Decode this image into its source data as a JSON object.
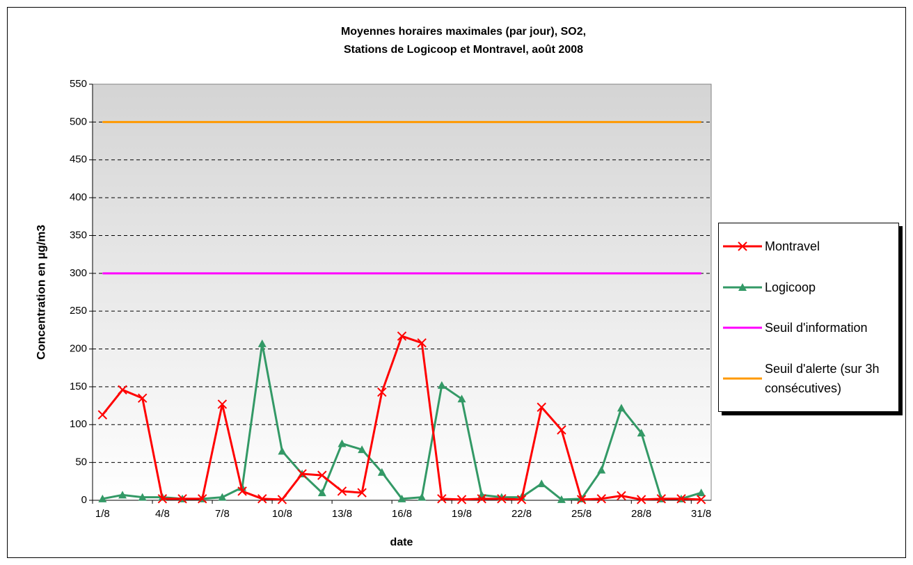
{
  "chart_data": {
    "type": "line",
    "title": [
      "Moyennes horaires maximales (par jour), SO2,",
      "Stations de Logicoop et Montravel, août 2008"
    ],
    "x_label": "date",
    "y_label": "Concentration en µg/m3",
    "categories": [
      "1/8",
      null,
      null,
      "4/8",
      null,
      null,
      "7/8",
      null,
      null,
      "10/8",
      null,
      null,
      "13/8",
      null,
      null,
      "16/8",
      null,
      null,
      "19/8",
      null,
      null,
      "22/8",
      null,
      null,
      "25/8",
      null,
      null,
      "28/8",
      null,
      null,
      "31/8"
    ],
    "series": [
      {
        "name": "Montravel",
        "color": "#ff0000",
        "marker": "x",
        "values": [
          113,
          146,
          135,
          2,
          2,
          2,
          127,
          12,
          2,
          1,
          35,
          33,
          12,
          10,
          143,
          217,
          208,
          2,
          1,
          2,
          2,
          1,
          123,
          93,
          1,
          2,
          6,
          1,
          2,
          2,
          1
        ]
      },
      {
        "name": "Logicoop",
        "color": "#339966",
        "marker": "triangle",
        "values": [
          2,
          7,
          4,
          4,
          2,
          2,
          4,
          17,
          207,
          65,
          35,
          10,
          75,
          67,
          37,
          2,
          4,
          152,
          134,
          7,
          4,
          4,
          22,
          1,
          2,
          40,
          122,
          89,
          2,
          2,
          10
        ]
      },
      {
        "name": "Seuil d'information",
        "color": "#ff00ff",
        "marker": "none",
        "values": [
          300,
          300,
          300,
          300,
          300,
          300,
          300,
          300,
          300,
          300,
          300,
          300,
          300,
          300,
          300,
          300,
          300,
          300,
          300,
          300,
          300,
          300,
          300,
          300,
          300,
          300,
          300,
          300,
          300,
          300,
          300
        ]
      },
      {
        "name": "Seuil d'alerte (sur 3h consécutives)",
        "color": "#ff9900",
        "marker": "none",
        "values": [
          500,
          500,
          500,
          500,
          500,
          500,
          500,
          500,
          500,
          500,
          500,
          500,
          500,
          500,
          500,
          500,
          500,
          500,
          500,
          500,
          500,
          500,
          500,
          500,
          500,
          500,
          500,
          500,
          500,
          500,
          500
        ]
      }
    ],
    "ylim": [
      0,
      550
    ],
    "yticks": [
      0,
      50,
      100,
      150,
      200,
      250,
      300,
      350,
      400,
      450,
      500,
      550
    ],
    "grid": true,
    "legend": "right"
  }
}
